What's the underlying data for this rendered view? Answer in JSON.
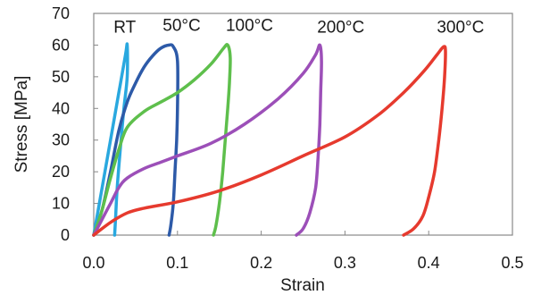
{
  "chart_data": {
    "type": "line",
    "title": "",
    "xlabel": "Strain",
    "ylabel": "Stress [MPa]",
    "xlim": [
      0,
      0.5
    ],
    "ylim": [
      0,
      70
    ],
    "x_ticks": [
      0.0,
      0.1,
      0.2,
      0.3,
      0.4,
      0.5
    ],
    "x_tick_labels": [
      "0.0",
      "0.1",
      "0.2",
      "0.3",
      "0.4",
      "0.5"
    ],
    "y_ticks": [
      0,
      10,
      20,
      30,
      40,
      50,
      60,
      70
    ],
    "y_tick_labels": [
      "0",
      "10",
      "20",
      "30",
      "40",
      "50",
      "60",
      "70"
    ],
    "grid": false,
    "legend": "none",
    "series": [
      {
        "name": "RT",
        "color": "#29a8df",
        "points": [
          [
            0.0,
            0
          ],
          [
            0.01,
            15
          ],
          [
            0.02,
            30
          ],
          [
            0.03,
            45
          ],
          [
            0.038,
            57
          ],
          [
            0.04,
            60
          ],
          [
            0.04,
            50
          ],
          [
            0.036,
            40
          ],
          [
            0.032,
            28
          ],
          [
            0.028,
            15
          ],
          [
            0.026,
            5
          ],
          [
            0.025,
            0
          ]
        ]
      },
      {
        "name": "50°C",
        "color": "#2d5aa8",
        "points": [
          [
            0.0,
            0
          ],
          [
            0.01,
            8
          ],
          [
            0.02,
            20
          ],
          [
            0.03,
            33
          ],
          [
            0.04,
            42
          ],
          [
            0.05,
            48
          ],
          [
            0.06,
            53
          ],
          [
            0.07,
            56.5
          ],
          [
            0.08,
            59
          ],
          [
            0.09,
            60
          ],
          [
            0.095,
            59.5
          ],
          [
            0.1,
            55
          ],
          [
            0.1,
            40
          ],
          [
            0.099,
            30
          ],
          [
            0.097,
            20
          ],
          [
            0.095,
            10
          ],
          [
            0.092,
            3
          ],
          [
            0.09,
            0
          ]
        ]
      },
      {
        "name": "100°C",
        "color": "#5ebf4c",
        "points": [
          [
            0.0,
            0
          ],
          [
            0.01,
            8
          ],
          [
            0.02,
            18
          ],
          [
            0.03,
            27
          ],
          [
            0.04,
            34
          ],
          [
            0.06,
            39
          ],
          [
            0.08,
            42
          ],
          [
            0.1,
            45
          ],
          [
            0.12,
            49
          ],
          [
            0.14,
            54
          ],
          [
            0.155,
            59
          ],
          [
            0.16,
            60
          ],
          [
            0.163,
            56
          ],
          [
            0.162,
            48
          ],
          [
            0.16,
            40
          ],
          [
            0.157,
            30
          ],
          [
            0.154,
            20
          ],
          [
            0.15,
            10
          ],
          [
            0.146,
            3
          ],
          [
            0.143,
            0
          ]
        ]
      },
      {
        "name": "200°C",
        "color": "#9c4fb8",
        "points": [
          [
            0.0,
            0
          ],
          [
            0.01,
            5
          ],
          [
            0.02,
            10
          ],
          [
            0.03,
            15
          ],
          [
            0.04,
            18
          ],
          [
            0.06,
            21
          ],
          [
            0.08,
            23
          ],
          [
            0.1,
            25
          ],
          [
            0.14,
            29
          ],
          [
            0.18,
            35
          ],
          [
            0.22,
            43
          ],
          [
            0.25,
            51
          ],
          [
            0.265,
            57
          ],
          [
            0.27,
            60
          ],
          [
            0.272,
            55
          ],
          [
            0.271,
            45
          ],
          [
            0.27,
            35
          ],
          [
            0.268,
            25
          ],
          [
            0.265,
            15
          ],
          [
            0.258,
            7
          ],
          [
            0.25,
            2
          ],
          [
            0.242,
            0
          ]
        ]
      },
      {
        "name": "300°C",
        "color": "#e63a2e",
        "points": [
          [
            0.0,
            0
          ],
          [
            0.02,
            4
          ],
          [
            0.04,
            7
          ],
          [
            0.06,
            8.5
          ],
          [
            0.1,
            10.5
          ],
          [
            0.15,
            14
          ],
          [
            0.2,
            19
          ],
          [
            0.25,
            25
          ],
          [
            0.3,
            31
          ],
          [
            0.34,
            38
          ],
          [
            0.37,
            45
          ],
          [
            0.395,
            52
          ],
          [
            0.41,
            57
          ],
          [
            0.418,
            59.5
          ],
          [
            0.42,
            58
          ],
          [
            0.419,
            50
          ],
          [
            0.416,
            40
          ],
          [
            0.412,
            30
          ],
          [
            0.407,
            20
          ],
          [
            0.4,
            12
          ],
          [
            0.393,
            6
          ],
          [
            0.382,
            2
          ],
          [
            0.37,
            0
          ]
        ]
      }
    ],
    "series_labels": [
      {
        "text": "RT",
        "x": 0.037,
        "y": 64,
        "color": "#1a1a1a"
      },
      {
        "text": "50°C",
        "x": 0.105,
        "y": 64.5,
        "color": "#1a1a1a"
      },
      {
        "text": "100°C",
        "x": 0.186,
        "y": 64.5,
        "color": "#1a1a1a"
      },
      {
        "text": "200°C",
        "x": 0.295,
        "y": 64,
        "color": "#1a1a1a"
      },
      {
        "text": "300°C",
        "x": 0.438,
        "y": 64,
        "color": "#1a1a1a"
      }
    ]
  }
}
